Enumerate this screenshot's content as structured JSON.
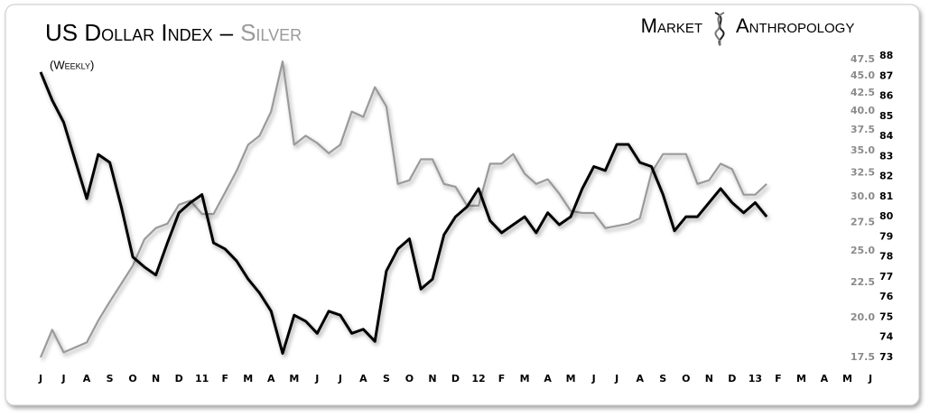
{
  "chart_data": {
    "type": "line",
    "title_separator": "–",
    "subtitle": "(Weekly)",
    "brand": [
      "Market",
      "Anthropology"
    ],
    "x": [
      0,
      0.5,
      1,
      1.5,
      2,
      2.5,
      3,
      3.5,
      4,
      4.5,
      5,
      5.5,
      6,
      6.5,
      7,
      7.5,
      8,
      8.5,
      9,
      9.5,
      10,
      10.5,
      11,
      11.5,
      12,
      12.5,
      13,
      13.5,
      14,
      14.5,
      15,
      15.5,
      16,
      16.5,
      17,
      17.5,
      18,
      18.5,
      19,
      19.5,
      20,
      20.5,
      21,
      21.5,
      22,
      22.5,
      23,
      23.5,
      24,
      24.5,
      25,
      25.5,
      26,
      26.5,
      27,
      27.5,
      28,
      28.5,
      29,
      29.5,
      30,
      30.5,
      31,
      31.5
    ],
    "xlim": [
      0,
      36
    ],
    "xticks": [
      {
        "value": 0,
        "label": "J"
      },
      {
        "value": 1,
        "label": "J"
      },
      {
        "value": 2,
        "label": "A"
      },
      {
        "value": 3,
        "label": "S"
      },
      {
        "value": 4,
        "label": "O"
      },
      {
        "value": 5,
        "label": "N"
      },
      {
        "value": 6,
        "label": "D"
      },
      {
        "value": 7,
        "label": "11"
      },
      {
        "value": 8,
        "label": "F"
      },
      {
        "value": 9,
        "label": "M"
      },
      {
        "value": 10,
        "label": "A"
      },
      {
        "value": 11,
        "label": "M"
      },
      {
        "value": 12,
        "label": "J"
      },
      {
        "value": 13,
        "label": "J"
      },
      {
        "value": 14,
        "label": "A"
      },
      {
        "value": 15,
        "label": "S"
      },
      {
        "value": 16,
        "label": "O"
      },
      {
        "value": 17,
        "label": "N"
      },
      {
        "value": 18,
        "label": "D"
      },
      {
        "value": 19,
        "label": "12"
      },
      {
        "value": 20,
        "label": "F"
      },
      {
        "value": 21,
        "label": "M"
      },
      {
        "value": 22,
        "label": "A"
      },
      {
        "value": 23,
        "label": "M"
      },
      {
        "value": 24,
        "label": "J"
      },
      {
        "value": 25,
        "label": "J"
      },
      {
        "value": 26,
        "label": "A"
      },
      {
        "value": 27,
        "label": "S"
      },
      {
        "value": 28,
        "label": "O"
      },
      {
        "value": 29,
        "label": "N"
      },
      {
        "value": 30,
        "label": "D"
      },
      {
        "value": 31,
        "label": "13"
      },
      {
        "value": 32,
        "label": "F"
      },
      {
        "value": 33,
        "label": "M"
      },
      {
        "value": 34,
        "label": "A"
      },
      {
        "value": 35,
        "label": "M"
      },
      {
        "value": 36,
        "label": "J"
      }
    ],
    "ylim": [
      17.5,
      47.5
    ],
    "ylog": true,
    "yticks": [
      17.5,
      {
        "value": 20,
        "label": "20.0"
      },
      22.5,
      {
        "value": 25,
        "label": "25.0"
      },
      27.5,
      {
        "value": 30,
        "label": "30.0"
      },
      32.5,
      {
        "value": 35,
        "label": "35.0"
      },
      37.5,
      {
        "value": 40,
        "label": "40.0"
      },
      42.5,
      {
        "value": 45,
        "label": "45.0"
      },
      47.5
    ],
    "y2lim": [
      73,
      88
    ],
    "y2ticks": [
      73,
      74,
      75,
      76,
      77,
      78,
      79,
      80,
      81,
      82,
      83,
      84,
      85,
      86,
      87,
      88
    ],
    "series": [
      {
        "name": "US Dollar Index",
        "color": "#000000",
        "axis": "y2",
        "values": [
          87.2,
          85.8,
          84.7,
          82.8,
          80.9,
          83.1,
          82.7,
          80.5,
          78.0,
          77.5,
          77.1,
          78.7,
          80.2,
          80.7,
          81.1,
          78.7,
          78.4,
          77.8,
          76.9,
          76.2,
          75.3,
          73.2,
          75.1,
          74.8,
          74.2,
          75.3,
          75.1,
          74.2,
          74.4,
          73.8,
          77.3,
          78.4,
          78.9,
          76.4,
          76.9,
          79.1,
          80.0,
          80.5,
          81.4,
          79.8,
          79.2,
          79.6,
          80.0,
          79.2,
          80.2,
          79.6,
          80.0,
          81.4,
          82.5,
          82.3,
          83.6,
          83.6,
          82.7,
          82.5,
          81.1,
          79.3,
          80.0,
          80.0,
          80.7,
          81.4,
          80.7,
          80.2,
          80.7,
          80.0
        ]
      },
      {
        "name": "Silver",
        "color": "#9a9a9a",
        "values": [
          17.5,
          19.2,
          17.8,
          18.1,
          18.4,
          19.8,
          21.1,
          22.4,
          23.8,
          26.0,
          27.0,
          27.4,
          29.2,
          29.6,
          28.3,
          28.3,
          30.4,
          32.7,
          35.7,
          36.8,
          39.9,
          47.2,
          35.7,
          36.8,
          35.9,
          34.7,
          35.7,
          39.9,
          39.2,
          43.3,
          40.6,
          31.3,
          31.7,
          34.0,
          34.0,
          31.3,
          31.0,
          29.1,
          29.1,
          33.5,
          33.5,
          34.6,
          32.4,
          31.3,
          31.8,
          30.3,
          28.6,
          28.4,
          28.4,
          27.0,
          27.2,
          27.4,
          27.9,
          32.5,
          34.6,
          34.6,
          34.6,
          31.3,
          31.7,
          33.5,
          32.9,
          30.2,
          30.2,
          31.3
        ]
      }
    ]
  }
}
